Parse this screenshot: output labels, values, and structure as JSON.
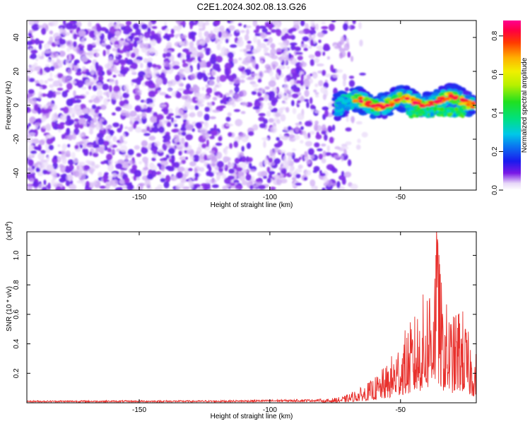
{
  "title": "C2E1.2024.302.08.13.G26",
  "chart_data": [
    {
      "type": "heatmap",
      "xlabel": "Height of straight line (km)",
      "ylabel": "Frequency (Hz)",
      "xlim": [
        -193,
        -21
      ],
      "ylim": [
        -50,
        50
      ],
      "xticks": [
        -150,
        -100,
        -50
      ],
      "yticks": [
        -40,
        -20,
        0,
        20,
        40
      ],
      "colorbar": {
        "label": "Normalized spectral amplitude",
        "range": [
          0,
          0.88
        ],
        "ticks": [
          0.0,
          0.2,
          0.4,
          0.6,
          0.8
        ]
      },
      "regions": [
        {
          "name": "broadband weak noise",
          "x_range": [
            -193,
            -73
          ],
          "y_range": [
            -50,
            50
          ],
          "amplitude": [
            0.05,
            0.12
          ]
        },
        {
          "name": "narrow band near 0 Hz",
          "x_range": [
            -80,
            -22
          ],
          "y_range": [
            -6,
            8
          ],
          "amplitude": [
            0.2,
            0.88
          ]
        }
      ]
    },
    {
      "type": "line",
      "xlabel": "Height of straight line (km)",
      "ylabel": "SNR (10 * v/v)",
      "yscale_label": "(x10",
      "yscale_exp": "4",
      "xlim": [
        -193,
        -21
      ],
      "ylim": [
        0,
        1.16
      ],
      "xticks": [
        -150,
        -100,
        -50
      ],
      "yticks": [
        0.2,
        0.4,
        0.6,
        0.8,
        1.0
      ],
      "color": "#e8302c",
      "envelope": {
        "x": [
          -193,
          -120,
          -80,
          -72,
          -65,
          -60,
          -55,
          -50,
          -45,
          -40,
          -38,
          -36,
          -34,
          -30,
          -27,
          -24,
          -21
        ],
        "y": [
          0.012,
          0.013,
          0.02,
          0.04,
          0.1,
          0.16,
          0.25,
          0.42,
          0.55,
          0.75,
          0.95,
          1.15,
          0.7,
          0.55,
          0.66,
          0.45,
          0.32
        ]
      }
    }
  ]
}
